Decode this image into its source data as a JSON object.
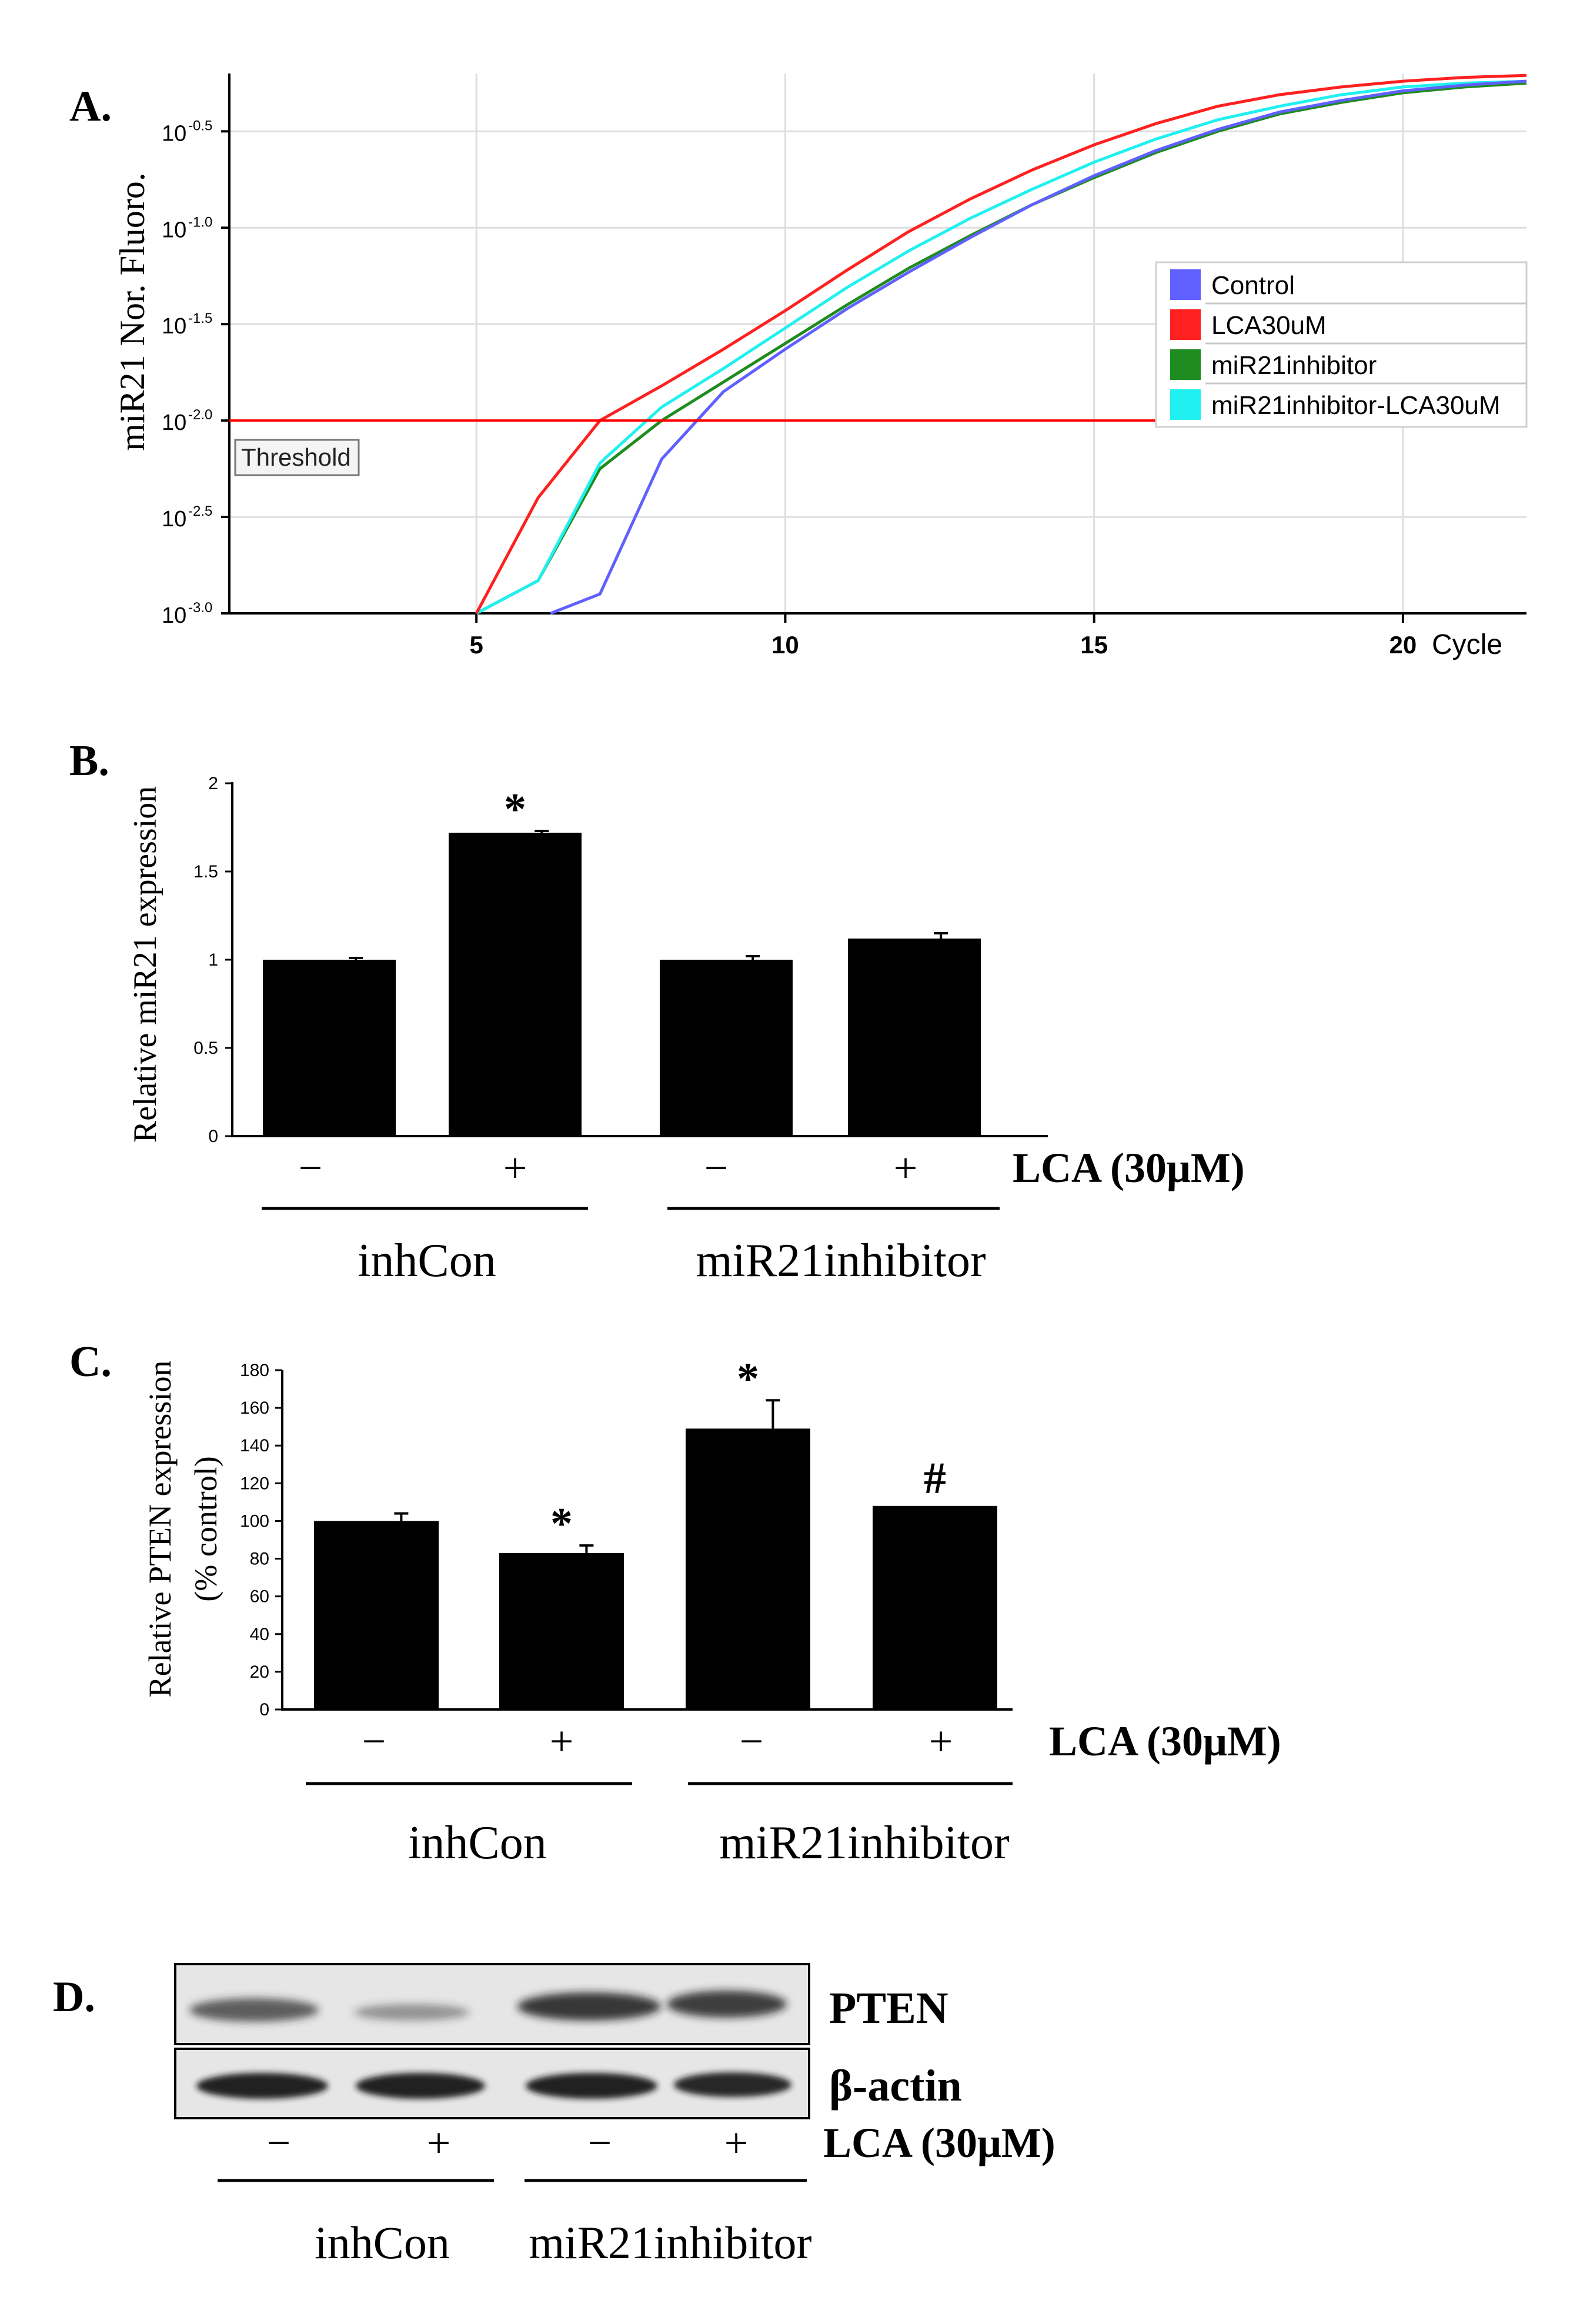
{
  "panelA": {
    "panel_label": "A.",
    "ylabel": "miR21 Nor. Fluoro.",
    "threshold_label": "Threshold",
    "x_unit_label": "Cycle",
    "x_ticks": [
      "5",
      "10",
      "15",
      "20"
    ],
    "y_ticks": [
      {
        "base": "10",
        "exp": "-3.0"
      },
      {
        "base": "10",
        "exp": "-2.5"
      },
      {
        "base": "10",
        "exp": "-2.0"
      },
      {
        "base": "10",
        "exp": "-1.5"
      },
      {
        "base": "10",
        "exp": "-1.0"
      },
      {
        "base": "10",
        "exp": "-0.5"
      }
    ],
    "legend": [
      "Control",
      "LCA30uM",
      "miR21inhibitor",
      "miR21inhibitor-LCA30uM"
    ],
    "colors": {
      "Control": "#6060ff",
      "LCA30uM": "#ff2020",
      "miR21inhibitor": "#1e8c1e",
      "miR21inhibitor-LCA30uM": "#20f0f0",
      "threshold": "#ff0000"
    }
  },
  "panelB": {
    "panel_label": "B.",
    "ylabel": "Relative miR21 expression",
    "treatment_label": "LCA (30μM)",
    "signs": [
      "−",
      "+",
      "−",
      "+"
    ],
    "groups": [
      "inhCon",
      "miR21inhibitor"
    ],
    "y_ticks": [
      "0",
      "0.5",
      "1",
      "1.5",
      "2"
    ],
    "marks": [
      "",
      "*",
      "",
      ""
    ]
  },
  "panelC": {
    "panel_label": "C.",
    "ylabel_line1": "Relative PTEN expression",
    "ylabel_line2": "(% control)",
    "treatment_label": "LCA (30μM)",
    "signs": [
      "−",
      "+",
      "−",
      "+"
    ],
    "groups": [
      "inhCon",
      "miR21inhibitor"
    ],
    "y_ticks": [
      "0",
      "20",
      "40",
      "60",
      "80",
      "100",
      "120",
      "140",
      "160",
      "180"
    ],
    "marks": [
      "",
      "*",
      "*",
      "#"
    ]
  },
  "panelD": {
    "panel_label": "D.",
    "band_labels": [
      "PTEN",
      "β-actin"
    ],
    "treatment_label": "LCA (30μM)",
    "signs": [
      "−",
      "+",
      "−",
      "+"
    ],
    "groups": [
      "inhCon",
      "miR21inhibitor"
    ]
  },
  "chart_data": [
    {
      "type": "line",
      "title": "",
      "xlabel": "Cycle",
      "ylabel": "miR21 Nor. Fluoro.",
      "yscale": "log10",
      "xlim": [
        1,
        22
      ],
      "ylim": [
        -3.0,
        -0.2
      ],
      "threshold": -2.0,
      "series": [
        {
          "name": "Control",
          "x": [
            6.2,
            7,
            8,
            9,
            10,
            11,
            12,
            13,
            14,
            15,
            16,
            17,
            18,
            19,
            20,
            21,
            22
          ],
          "y": [
            -3.0,
            -2.9,
            -2.2,
            -1.85,
            -1.63,
            -1.42,
            -1.23,
            -1.05,
            -0.88,
            -0.73,
            -0.6,
            -0.49,
            -0.4,
            -0.34,
            -0.29,
            -0.26,
            -0.24
          ]
        },
        {
          "name": "LCA30uM",
          "x": [
            5,
            6,
            7,
            8,
            9,
            10,
            11,
            12,
            13,
            14,
            15,
            16,
            17,
            18,
            19,
            20,
            21,
            22
          ],
          "y": [
            -3.0,
            -2.4,
            -2.0,
            -1.82,
            -1.63,
            -1.43,
            -1.22,
            -1.02,
            -0.85,
            -0.7,
            -0.57,
            -0.46,
            -0.37,
            -0.31,
            -0.27,
            -0.24,
            -0.22,
            -0.21
          ]
        },
        {
          "name": "miR21inhibitor",
          "x": [
            5,
            6,
            7,
            8,
            9,
            10,
            11,
            12,
            13,
            14,
            15,
            16,
            17,
            18,
            19,
            20,
            21,
            22
          ],
          "y": [
            -3.0,
            -2.83,
            -2.25,
            -2.0,
            -1.8,
            -1.6,
            -1.4,
            -1.21,
            -1.04,
            -0.88,
            -0.74,
            -0.61,
            -0.5,
            -0.41,
            -0.35,
            -0.3,
            -0.27,
            -0.25
          ]
        },
        {
          "name": "miR21inhibitor-LCA30uM",
          "x": [
            5,
            6,
            7,
            8,
            9,
            10,
            11,
            12,
            13,
            14,
            15,
            16,
            17,
            18,
            19,
            20,
            21,
            22
          ],
          "y": [
            -3.0,
            -2.83,
            -2.22,
            -1.93,
            -1.73,
            -1.52,
            -1.31,
            -1.12,
            -0.95,
            -0.8,
            -0.66,
            -0.54,
            -0.44,
            -0.37,
            -0.31,
            -0.27,
            -0.25,
            -0.24
          ]
        }
      ]
    },
    {
      "type": "bar",
      "title": "",
      "xlabel": "LCA (30μM)",
      "ylabel": "Relative miR21 expression",
      "categories": [
        "inhCon −",
        "inhCon +",
        "miR21inhibitor −",
        "miR21inhibitor +"
      ],
      "values": [
        1.0,
        1.72,
        1.0,
        1.12
      ],
      "errors": [
        0.01,
        0.01,
        0.02,
        0.03
      ],
      "ylim": [
        0,
        2
      ]
    },
    {
      "type": "bar",
      "title": "",
      "xlabel": "LCA (30μM)",
      "ylabel": "Relative PTEN expression (% control)",
      "categories": [
        "inhCon −",
        "inhCon +",
        "miR21inhibitor −",
        "miR21inhibitor +"
      ],
      "values": [
        100,
        83,
        149,
        108
      ],
      "errors": [
        4,
        4,
        15,
        0
      ],
      "ylim": [
        0,
        180
      ]
    }
  ]
}
